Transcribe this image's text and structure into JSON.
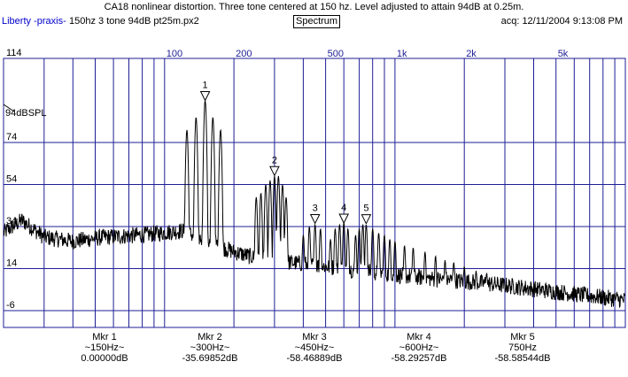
{
  "title": "CA18 nonlinear distortion.  Three tone centered at 150 hz.  Level adjusted to attain 94dB at 0.25m.",
  "app_name": "Liberty -praxis-",
  "file_info": "150hz 3 tone 94dB pt25m.px2",
  "mode_button": "Spectrum",
  "acquired": "acq: 12/11/2004 9:13:08 PM",
  "reference_label": "94dBSPL",
  "colors": {
    "grid": "#1e1e96",
    "trace": "#000000",
    "app_name": "#0000cc"
  },
  "chart_data": {
    "type": "line",
    "xscale": "log",
    "xlim": [
      20,
      10000
    ],
    "ylim": [
      -14,
      114
    ],
    "xticks": [
      {
        "value": 100,
        "label": "100"
      },
      {
        "value": 200,
        "label": "200"
      },
      {
        "value": 500,
        "label": "500"
      },
      {
        "value": 1000,
        "label": "1k"
      },
      {
        "value": 2000,
        "label": "2k"
      },
      {
        "value": 5000,
        "label": "5k"
      }
    ],
    "yticks": [
      {
        "value": 114,
        "label": "114"
      },
      {
        "value": 74,
        "label": "74"
      },
      {
        "value": 54,
        "label": "54"
      },
      {
        "value": 34,
        "label": "34"
      },
      {
        "value": 14,
        "label": "14"
      },
      {
        "value": -6,
        "label": "-6"
      }
    ],
    "grid": true,
    "markers": [
      {
        "id": "1",
        "freq": 150,
        "level": 94
      },
      {
        "id": "2",
        "freq": 300,
        "level": 58.3
      },
      {
        "id": "3",
        "freq": 450,
        "level": 35.5
      },
      {
        "id": "4",
        "freq": 600,
        "level": 35.7
      },
      {
        "id": "5",
        "freq": 750,
        "level": 35.4
      }
    ],
    "peaks": [
      {
        "freq": 125,
        "level": 80
      },
      {
        "freq": 137,
        "level": 86
      },
      {
        "freq": 150,
        "level": 94
      },
      {
        "freq": 162,
        "level": 86
      },
      {
        "freq": 175,
        "level": 80
      },
      {
        "freq": 250,
        "level": 48
      },
      {
        "freq": 262,
        "level": 50
      },
      {
        "freq": 275,
        "level": 54
      },
      {
        "freq": 287,
        "level": 56
      },
      {
        "freq": 300,
        "level": 58
      },
      {
        "freq": 312,
        "level": 58
      },
      {
        "freq": 325,
        "level": 54
      },
      {
        "freq": 337,
        "level": 48
      },
      {
        "freq": 400,
        "level": 30
      },
      {
        "freq": 425,
        "level": 34
      },
      {
        "freq": 450,
        "level": 35
      },
      {
        "freq": 475,
        "level": 33
      },
      {
        "freq": 525,
        "level": 28
      },
      {
        "freq": 550,
        "level": 33
      },
      {
        "freq": 575,
        "level": 35
      },
      {
        "freq": 600,
        "level": 36
      },
      {
        "freq": 625,
        "level": 33
      },
      {
        "freq": 675,
        "level": 30
      },
      {
        "freq": 700,
        "level": 33
      },
      {
        "freq": 725,
        "level": 35
      },
      {
        "freq": 750,
        "level": 35
      },
      {
        "freq": 800,
        "level": 33
      },
      {
        "freq": 850,
        "level": 31
      },
      {
        "freq": 900,
        "level": 30
      },
      {
        "freq": 950,
        "level": 28
      },
      {
        "freq": 1000,
        "level": 27
      },
      {
        "freq": 1100,
        "level": 25
      },
      {
        "freq": 1200,
        "level": 24
      },
      {
        "freq": 1350,
        "level": 22
      },
      {
        "freq": 1500,
        "level": 20
      },
      {
        "freq": 1650,
        "level": 18
      },
      {
        "freq": 1800,
        "level": 17
      },
      {
        "freq": 2000,
        "level": 15
      },
      {
        "freq": 2250,
        "level": 13
      },
      {
        "freq": 2500,
        "level": 12
      }
    ],
    "noise_floor": [
      {
        "freq": 20,
        "level": 31
      },
      {
        "freq": 24,
        "level": 37
      },
      {
        "freq": 30,
        "level": 29
      },
      {
        "freq": 40,
        "level": 27
      },
      {
        "freq": 55,
        "level": 29
      },
      {
        "freq": 80,
        "level": 30
      },
      {
        "freq": 120,
        "level": 32
      },
      {
        "freq": 160,
        "level": 26
      },
      {
        "freq": 200,
        "level": 22
      },
      {
        "freq": 250,
        "level": 19
      },
      {
        "freq": 350,
        "level": 17
      },
      {
        "freq": 500,
        "level": 15
      },
      {
        "freq": 700,
        "level": 13
      },
      {
        "freq": 1000,
        "level": 11
      },
      {
        "freq": 1500,
        "level": 9
      },
      {
        "freq": 2000,
        "level": 8
      },
      {
        "freq": 3000,
        "level": 6
      },
      {
        "freq": 5000,
        "level": 3
      },
      {
        "freq": 7000,
        "level": 1
      },
      {
        "freq": 10000,
        "level": -1
      }
    ]
  },
  "marker_readouts": [
    {
      "name": "Mkr 1",
      "freq": "~150Hz~",
      "value": "0.00000dB"
    },
    {
      "name": "Mkr 2",
      "freq": "~300Hz~",
      "value": "-35.69852dB"
    },
    {
      "name": "Mkr 3",
      "freq": "~450Hz~",
      "value": "-58.46889dB"
    },
    {
      "name": "Mkr 4",
      "freq": "~600Hz~",
      "value": "-58.29257dB"
    },
    {
      "name": "Mkr 5",
      "freq": "750Hz",
      "value": "-58.58544dB"
    }
  ]
}
